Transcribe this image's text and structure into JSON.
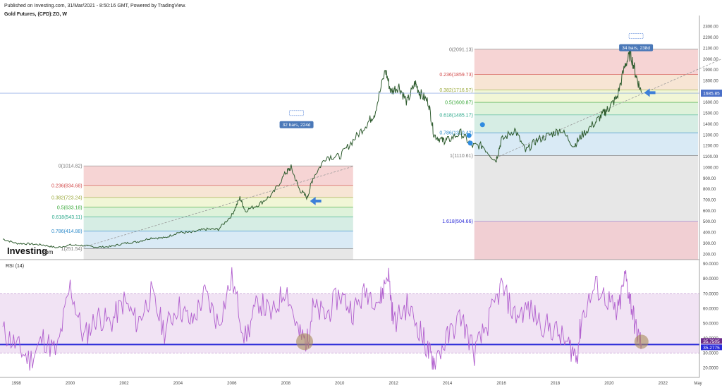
{
  "header": {
    "published": "Published on Investing.com, 31/Mar/2021 - 8:50:16 GMT, Powered by TradingView.",
    "symbol": "Gold Futures, (CFD):ZG, W"
  },
  "colors": {
    "price": "#2f5c2f",
    "rsi": "#b15fce",
    "rsi_band": "#f1e3f4",
    "rsi_line": "#2a2ad8",
    "fib_0": "#f4cccc",
    "fib_236": "#f6e0cc",
    "fib_382": "#eef5cf",
    "fib_5": "#d8f0d4",
    "fib_618": "#cfeadf",
    "fib_786": "#d2e6f3",
    "fib_1": "#e3e3e3",
    "fib_1618": "#d8d6f4",
    "arrow": "#3d7fd9",
    "badge": "#4a78b8"
  },
  "logo": {
    "brand": "Investing",
    "suffix": ".com"
  },
  "rsi_label": "RSI (14)",
  "price_axis_ticks": [
    "2300.00",
    "2200.00",
    "2100.00",
    "2000.00",
    "1900.00",
    "1800.00",
    "1700.00",
    "1600.00",
    "1500.00",
    "1400.00",
    "1300.00",
    "1200.00",
    "1100.00",
    "1000.00",
    "900.00",
    "800.00",
    "700.00",
    "600.00",
    "500.00",
    "400.00",
    "300.00",
    "200.00"
  ],
  "rsi_axis_ticks": [
    "90.0000",
    "80.0000",
    "70.0000",
    "60.0000",
    "50.0000",
    "40.0000",
    "30.0000",
    "20.0000"
  ],
  "time_ticks": [
    "1998",
    "2000",
    "2002",
    "2004",
    "2006",
    "2008",
    "2010",
    "2012",
    "2014",
    "2016",
    "2018",
    "2020",
    "2022",
    "May"
  ],
  "fib_left": [
    {
      "label": "0(1014.82)",
      "color": "#777"
    },
    {
      "label": "0.236(834.68)",
      "color": "#d24a4a"
    },
    {
      "label": "0.382(723.24)",
      "color": "#9aa83a"
    },
    {
      "label": "0.5(633.18)",
      "color": "#3aa83a"
    },
    {
      "label": "0.618(543.11)",
      "color": "#2aa88a"
    },
    {
      "label": "0.786(414.88)",
      "color": "#2a88c8"
    },
    {
      "label": "1(251.54)",
      "color": "#777"
    }
  ],
  "fib_right": [
    {
      "label": "0(2091.13)",
      "color": "#777"
    },
    {
      "label": "0.236(1859.73)",
      "color": "#d24a4a"
    },
    {
      "label": "0.382(1716.57)",
      "color": "#9aa83a"
    },
    {
      "label": "0.5(1600.87)",
      "color": "#3aa83a"
    },
    {
      "label": "0.618(1485.17)",
      "color": "#2aa88a"
    },
    {
      "label": "0.786(1320.42)",
      "color": "#2a88c8"
    },
    {
      "label": "1(1110.61)",
      "color": "#777"
    },
    {
      "label": "1.618(504.66)",
      "color": "#2a2ad8"
    }
  ],
  "badges": {
    "left": "32 bars, 224d",
    "right": "34 bars, 238d"
  },
  "current_price": "1685.85",
  "rsi_values": {
    "upper": "35.7505",
    "lower": "35.2775"
  },
  "chart_data": {
    "type": "line",
    "title": "Gold Futures, (CFD):ZG, W",
    "series": [
      {
        "x": [
          1997.5,
          1998.0,
          1998.5,
          1999.0,
          1999.5,
          2000.0,
          2000.5,
          2001.0,
          2001.5,
          2002.0,
          2002.5,
          2003.0,
          2003.5,
          2004.0,
          2004.5,
          2005.0,
          2005.5,
          2006.0,
          2006.3,
          2006.5,
          2007.0,
          2007.5,
          2008.0,
          2008.2,
          2008.5,
          2008.8,
          2009.0,
          2009.5,
          2010.0,
          2010.5,
          2011.0,
          2011.3,
          2011.7,
          2011.9,
          2012.2,
          2012.5,
          2012.8,
          2013.0,
          2013.3,
          2013.5,
          2013.8,
          2014.0,
          2014.5,
          2014.9,
          2015.3,
          2015.8,
          2016.0,
          2016.5,
          2016.9,
          2017.3,
          2017.8,
          2018.2,
          2018.7,
          2019.0,
          2019.5,
          2019.8,
          2020.0,
          2020.3,
          2020.6,
          2020.8,
          2021.0,
          2021.2
        ],
        "values": [
          340,
          300,
          295,
          285,
          260,
          285,
          280,
          265,
          270,
          300,
          315,
          350,
          350,
          400,
          400,
          430,
          430,
          560,
          720,
          600,
          660,
          750,
          950,
          1000,
          800,
          720,
          900,
          1100,
          1100,
          1250,
          1400,
          1500,
          1900,
          1700,
          1750,
          1600,
          1780,
          1680,
          1600,
          1300,
          1250,
          1250,
          1320,
          1200,
          1200,
          1060,
          1250,
          1350,
          1150,
          1250,
          1300,
          1350,
          1200,
          1300,
          1420,
          1500,
          1550,
          1650,
          1950,
          2050,
          1850,
          1690
        ]
      }
    ],
    "rsi_series": [
      {
        "name": "RSI (14)",
        "x": [
          1997.5,
          1998.0,
          1998.5,
          1999.0,
          1999.5,
          2000.0,
          2000.5,
          2001.0,
          2001.5,
          2002.0,
          2002.5,
          2003.0,
          2003.5,
          2004.0,
          2004.5,
          2005.0,
          2005.5,
          2006.0,
          2006.5,
          2007.0,
          2007.5,
          2008.0,
          2008.5,
          2008.8,
          2009.0,
          2009.5,
          2010.0,
          2010.5,
          2011.0,
          2011.5,
          2011.8,
          2012.0,
          2012.5,
          2013.0,
          2013.3,
          2013.5,
          2014.0,
          2014.5,
          2015.0,
          2015.5,
          2016.0,
          2016.5,
          2017.0,
          2017.5,
          2018.0,
          2018.5,
          2018.8,
          2019.0,
          2019.5,
          2020.0,
          2020.3,
          2020.6,
          2020.8,
          2021.0,
          2021.2
        ],
        "values": [
          45,
          35,
          25,
          40,
          30,
          75,
          40,
          55,
          50,
          65,
          50,
          70,
          45,
          62,
          50,
          70,
          50,
          80,
          40,
          65,
          55,
          75,
          42,
          38,
          60,
          55,
          70,
          58,
          72,
          65,
          85,
          50,
          62,
          45,
          30,
          25,
          40,
          55,
          30,
          50,
          75,
          55,
          60,
          50,
          45,
          35,
          28,
          55,
          75,
          65,
          55,
          82,
          65,
          45,
          36
        ]
      }
    ],
    "ylim": [
      150,
      2350
    ],
    "rsi_ylim": [
      15,
      92
    ],
    "xlim": [
      1997.5,
      2023.3
    ],
    "rsi_levels": [
      70,
      30
    ],
    "current_price_value": 1685.85,
    "fib_left_levels": [
      1014.82,
      834.68,
      723.24,
      633.18,
      543.11,
      414.88,
      251.54
    ],
    "fib_right_levels": [
      2091.13,
      1859.73,
      1716.57,
      1600.87,
      1485.17,
      1320.42,
      1110.61,
      504.66
    ],
    "fib_left_x": [
      2000.5,
      2010.5
    ],
    "fib_right_x": [
      2015.0,
      2025.0
    ],
    "grid": false,
    "axis_position": "right"
  }
}
